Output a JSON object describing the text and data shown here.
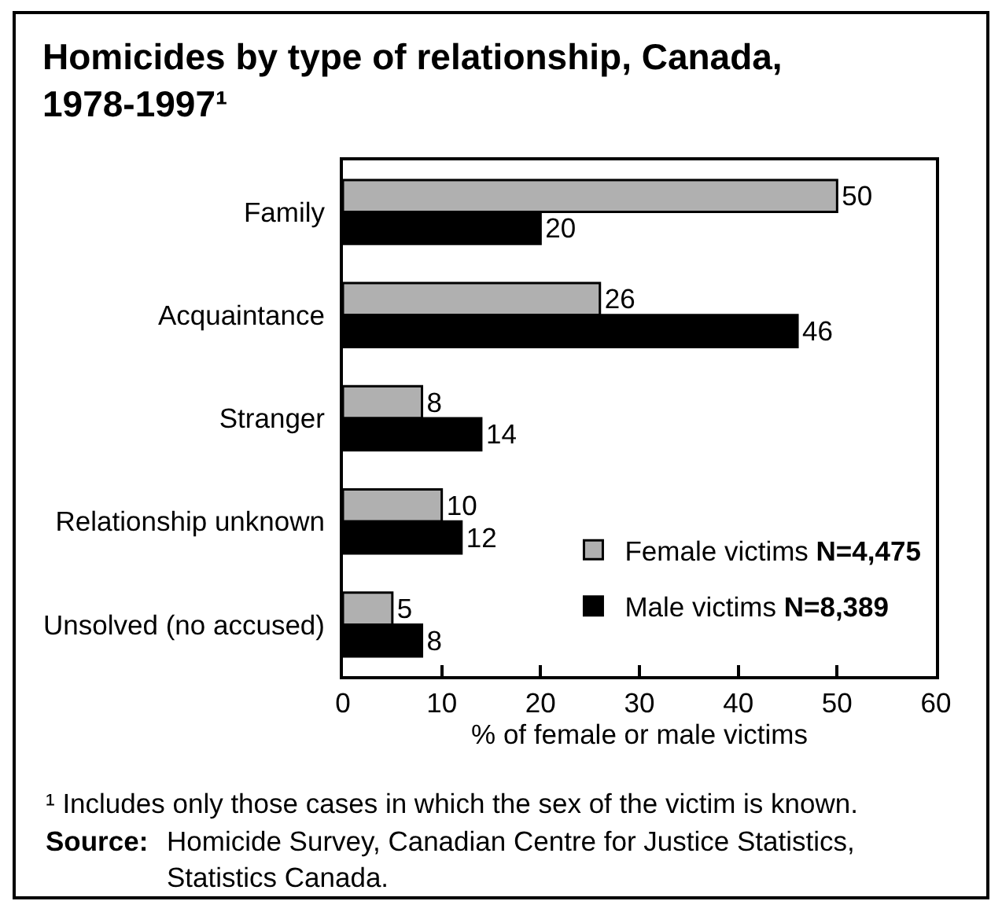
{
  "chart_data": {
    "type": "bar",
    "orientation": "horizontal",
    "title": "Homicides by type of relationship, Canada, 1978-1997¹",
    "xlabel": "% of female or male victims",
    "categories": [
      "Family",
      "Acquaintance",
      "Stranger",
      "Relationship unknown",
      "Unsolved (no accused)"
    ],
    "series": [
      {
        "name": "Female victims N=4,475",
        "color": "#b0b0b0",
        "values": [
          50,
          26,
          8,
          10,
          5
        ]
      },
      {
        "name": "Male victims N=8,389",
        "color": "#000000",
        "values": [
          20,
          46,
          14,
          12,
          8
        ]
      }
    ],
    "xlim": [
      0,
      60
    ],
    "xticks": [
      0,
      10,
      20,
      30,
      40,
      50,
      60
    ],
    "data_labels": true,
    "legend": "bottom right",
    "annotations": [
      "¹ Includes only those cases in which the sex of the victim is known.",
      "Source: Homicide Survey, Canadian Centre for Justice Statistics, Statistics Canada."
    ]
  }
}
